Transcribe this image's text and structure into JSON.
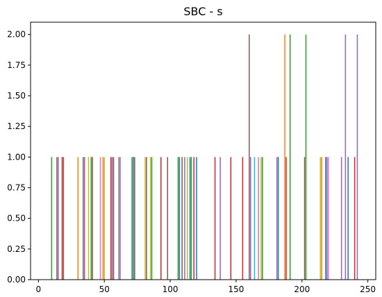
{
  "chart_data": {
    "type": "bar",
    "title": "SBC - s",
    "xlabel": "",
    "ylabel": "",
    "xlim": [
      -6,
      256
    ],
    "ylim": [
      0,
      2.1
    ],
    "xticks": [
      0,
      50,
      100,
      150,
      200,
      250
    ],
    "yticks": [
      0.0,
      0.25,
      0.5,
      0.75,
      1.0,
      1.25,
      1.5,
      1.75,
      2.0
    ],
    "ytick_labels": [
      "0.00",
      "0.25",
      "0.50",
      "0.75",
      "1.00",
      "1.25",
      "1.50",
      "1.75",
      "2.00"
    ],
    "grid": false,
    "colors": [
      "#1f77b4",
      "#ff7f0e",
      "#2ca02c",
      "#d62728",
      "#9467bd",
      "#8c564b",
      "#e377c2",
      "#7f7f7f",
      "#bcbd22",
      "#17becf"
    ],
    "bars": [
      {
        "x": 10,
        "y": 1,
        "color": "#2ca02c"
      },
      {
        "x": 14,
        "y": 1,
        "color": "#8c564b"
      },
      {
        "x": 15,
        "y": 1,
        "color": "#9467bd"
      },
      {
        "x": 18,
        "y": 1,
        "color": "#d62728"
      },
      {
        "x": 19,
        "y": 1,
        "color": "#8c564b"
      },
      {
        "x": 30,
        "y": 1,
        "color": "#ff7f0e"
      },
      {
        "x": 34,
        "y": 1,
        "color": "#8c564b"
      },
      {
        "x": 35,
        "y": 1,
        "color": "#9467bd"
      },
      {
        "x": 38,
        "y": 1,
        "color": "#bcbd22"
      },
      {
        "x": 40,
        "y": 1,
        "color": "#2ca02c"
      },
      {
        "x": 41,
        "y": 1,
        "color": "#8c564b"
      },
      {
        "x": 47,
        "y": 1,
        "color": "#e377c2"
      },
      {
        "x": 49,
        "y": 1,
        "color": "#ff7f0e"
      },
      {
        "x": 50,
        "y": 1,
        "color": "#bcbd22"
      },
      {
        "x": 55,
        "y": 1,
        "color": "#d62728"
      },
      {
        "x": 56,
        "y": 1,
        "color": "#9467bd"
      },
      {
        "x": 57,
        "y": 1,
        "color": "#8c564b"
      },
      {
        "x": 61,
        "y": 1,
        "color": "#7f7f7f"
      },
      {
        "x": 62,
        "y": 1,
        "color": "#9467bd"
      },
      {
        "x": 71,
        "y": 1,
        "color": "#2ca02c"
      },
      {
        "x": 72,
        "y": 1,
        "color": "#1f77b4"
      },
      {
        "x": 73,
        "y": 1,
        "color": "#8c564b"
      },
      {
        "x": 81,
        "y": 1,
        "color": "#bcbd22"
      },
      {
        "x": 82,
        "y": 1,
        "color": "#8c564b"
      },
      {
        "x": 85,
        "y": 1,
        "color": "#bcbd22"
      },
      {
        "x": 86,
        "y": 1,
        "color": "#2ca02c"
      },
      {
        "x": 93,
        "y": 1,
        "color": "#d62728"
      },
      {
        "x": 98,
        "y": 1,
        "color": "#8c564b"
      },
      {
        "x": 106,
        "y": 1,
        "color": "#2ca02c"
      },
      {
        "x": 107,
        "y": 1,
        "color": "#1f77b4"
      },
      {
        "x": 109,
        "y": 1,
        "color": "#8c564b"
      },
      {
        "x": 111,
        "y": 1,
        "color": "#9467bd"
      },
      {
        "x": 113,
        "y": 1,
        "color": "#bcbd22"
      },
      {
        "x": 115,
        "y": 1,
        "color": "#1f77b4"
      },
      {
        "x": 116,
        "y": 1,
        "color": "#2ca02c"
      },
      {
        "x": 118,
        "y": 1,
        "color": "#d62728"
      },
      {
        "x": 120,
        "y": 1,
        "color": "#1f77b4"
      },
      {
        "x": 134,
        "y": 1,
        "color": "#d62728"
      },
      {
        "x": 138,
        "y": 1,
        "color": "#9467bd"
      },
      {
        "x": 146,
        "y": 1,
        "color": "#d62728"
      },
      {
        "x": 155,
        "y": 1,
        "color": "#d62728"
      },
      {
        "x": 160,
        "y": 2,
        "color": "#8c564b"
      },
      {
        "x": 161,
        "y": 1,
        "color": "#9467bd"
      },
      {
        "x": 164,
        "y": 1,
        "color": "#17becf"
      },
      {
        "x": 167,
        "y": 1,
        "color": "#e377c2"
      },
      {
        "x": 169,
        "y": 1,
        "color": "#bcbd22"
      },
      {
        "x": 170,
        "y": 1,
        "color": "#2ca02c"
      },
      {
        "x": 181,
        "y": 1,
        "color": "#9467bd"
      },
      {
        "x": 182,
        "y": 1,
        "color": "#1f77b4"
      },
      {
        "x": 187,
        "y": 2,
        "color": "#ff7f0e"
      },
      {
        "x": 188,
        "y": 1,
        "color": "#d62728"
      },
      {
        "x": 191,
        "y": 2,
        "color": "#2ca02c"
      },
      {
        "x": 202,
        "y": 1,
        "color": "#8c564b"
      },
      {
        "x": 203,
        "y": 2,
        "color": "#2ca02c"
      },
      {
        "x": 214,
        "y": 1,
        "color": "#bcbd22"
      },
      {
        "x": 215,
        "y": 1,
        "color": "#ff7f0e"
      },
      {
        "x": 218,
        "y": 1,
        "color": "#1f77b4"
      },
      {
        "x": 219,
        "y": 1,
        "color": "#9467bd"
      },
      {
        "x": 220,
        "y": 1,
        "color": "#e377c2"
      },
      {
        "x": 230,
        "y": 1,
        "color": "#9467bd"
      },
      {
        "x": 233,
        "y": 2,
        "color": "#9467bd"
      },
      {
        "x": 235,
        "y": 1,
        "color": "#1f77b4"
      },
      {
        "x": 240,
        "y": 1,
        "color": "#d62728"
      },
      {
        "x": 242,
        "y": 2,
        "color": "#9467bd"
      }
    ]
  }
}
